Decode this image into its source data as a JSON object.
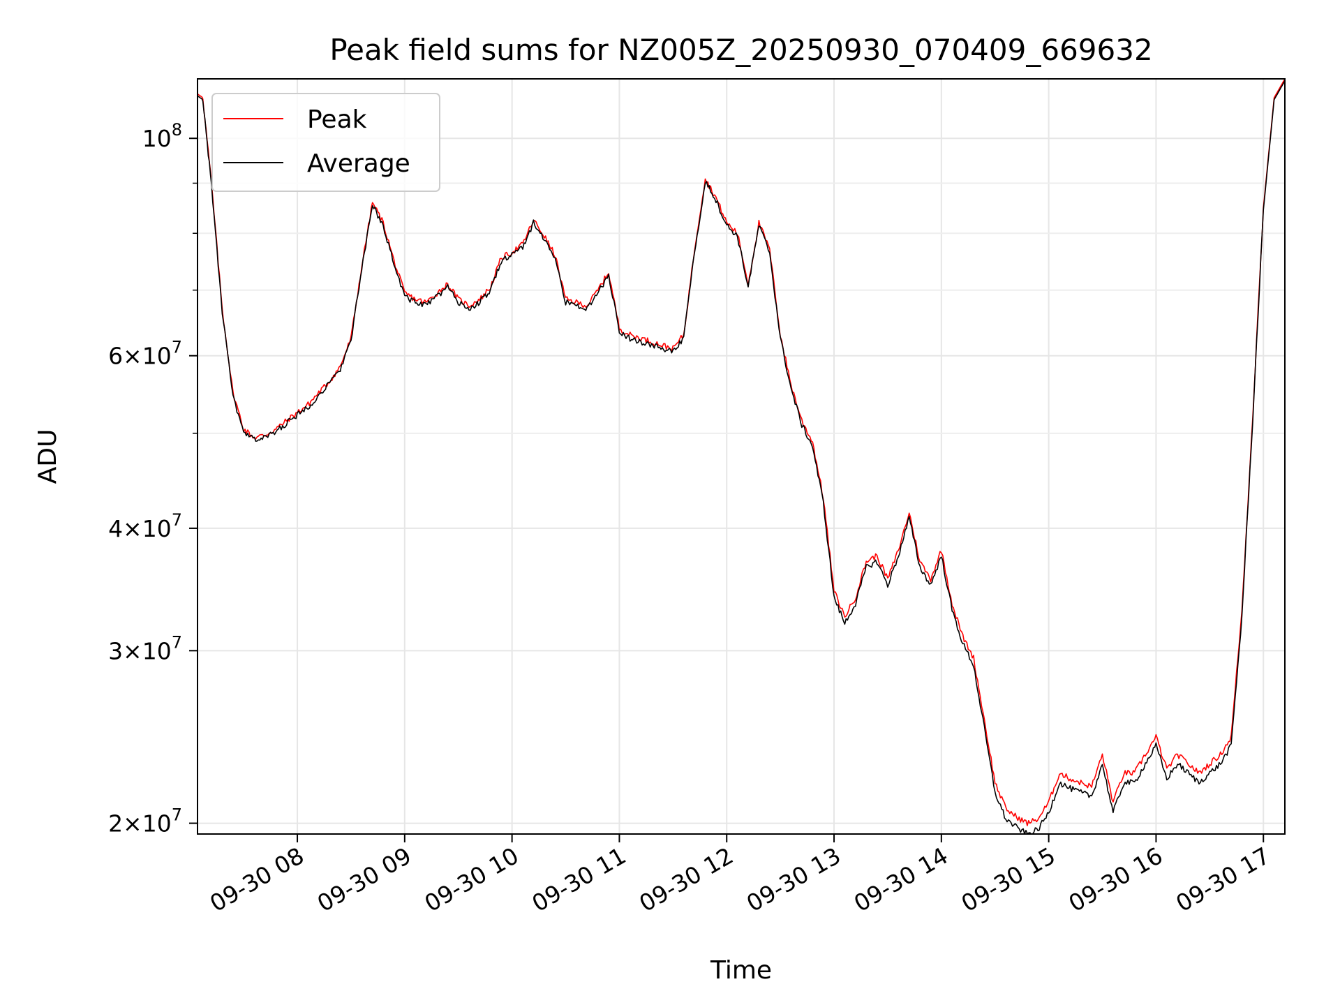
{
  "chart_data": {
    "type": "line",
    "title": "Peak field sums for NZ005Z_20250930_070409_669632",
    "xlabel": "Time",
    "ylabel": "ADU",
    "yscale": "log",
    "ylim": [
      19500000,
      115000000
    ],
    "xlim": [
      7.07,
      17.2
    ],
    "grid": true,
    "legend_position": "top-left",
    "x_ticks": [
      {
        "value": 8,
        "label": "09-30 08"
      },
      {
        "value": 9,
        "label": "09-30 09"
      },
      {
        "value": 10,
        "label": "09-30 10"
      },
      {
        "value": 11,
        "label": "09-30 11"
      },
      {
        "value": 12,
        "label": "09-30 12"
      },
      {
        "value": 13,
        "label": "09-30 13"
      },
      {
        "value": 14,
        "label": "09-30 14"
      },
      {
        "value": 15,
        "label": "09-30 15"
      },
      {
        "value": 16,
        "label": "09-30 16"
      },
      {
        "value": 17,
        "label": "09-30 17"
      }
    ],
    "y_ticks_major": [
      {
        "value": 100000000,
        "base": "10",
        "exp": "8",
        "mant": ""
      },
      {
        "value": 60000000,
        "mant": "6",
        "base": "10",
        "exp": "7"
      },
      {
        "value": 40000000,
        "mant": "4",
        "base": "10",
        "exp": "7"
      },
      {
        "value": 30000000,
        "mant": "3",
        "base": "10",
        "exp": "7"
      },
      {
        "value": 20000000,
        "mant": "2",
        "base": "10",
        "exp": "7"
      }
    ],
    "y_ticks_minor": [
      50000000,
      70000000,
      80000000,
      90000000
    ],
    "x_hours": [
      7.07,
      7.12,
      7.2,
      7.3,
      7.4,
      7.5,
      7.6,
      7.7,
      7.8,
      7.9,
      8.0,
      8.1,
      8.2,
      8.3,
      8.4,
      8.5,
      8.6,
      8.7,
      8.8,
      8.9,
      9.0,
      9.1,
      9.2,
      9.3,
      9.4,
      9.5,
      9.6,
      9.7,
      9.8,
      9.9,
      10.0,
      10.1,
      10.2,
      10.3,
      10.4,
      10.5,
      10.6,
      10.7,
      10.8,
      10.9,
      11.0,
      11.1,
      11.2,
      11.3,
      11.4,
      11.5,
      11.6,
      11.7,
      11.8,
      11.9,
      12.0,
      12.1,
      12.2,
      12.3,
      12.4,
      12.5,
      12.6,
      12.7,
      12.8,
      12.9,
      13.0,
      13.1,
      13.2,
      13.3,
      13.4,
      13.5,
      13.6,
      13.7,
      13.8,
      13.9,
      14.0,
      14.1,
      14.2,
      14.3,
      14.4,
      14.5,
      14.6,
      14.7,
      14.8,
      14.9,
      15.0,
      15.1,
      15.2,
      15.3,
      15.4,
      15.5,
      15.6,
      15.7,
      15.8,
      15.9,
      16.0,
      16.1,
      16.2,
      16.3,
      16.4,
      16.5,
      16.6,
      16.7,
      16.8,
      16.9,
      17.0,
      17.1,
      17.2
    ],
    "series": [
      {
        "name": "Peak",
        "color": "#ff0000",
        "values": [
          111000000,
          110000000,
          90000000,
          67000000,
          55000000,
          50500000,
          49500000,
          49800000,
          50500000,
          51500000,
          52500000,
          53500000,
          55000000,
          56500000,
          58500000,
          62500000,
          74000000,
          86000000,
          82000000,
          75000000,
          69500000,
          68500000,
          68000000,
          69500000,
          71000000,
          68500000,
          67500000,
          68500000,
          70500000,
          75500000,
          76500000,
          78000000,
          82500000,
          79500000,
          76000000,
          68500000,
          68000000,
          67500000,
          70000000,
          73000000,
          64000000,
          63000000,
          62500000,
          62000000,
          61500000,
          61000000,
          63000000,
          77000000,
          91000000,
          87000000,
          82000000,
          80000000,
          71000000,
          82000000,
          77000000,
          63000000,
          56000000,
          51500000,
          49000000,
          43000000,
          34500000,
          32500000,
          34000000,
          37000000,
          37500000,
          35500000,
          38000000,
          41500000,
          37000000,
          35500000,
          38000000,
          33500000,
          31000000,
          29500000,
          25500000,
          22000000,
          20700000,
          20300000,
          20000000,
          20200000,
          21000000,
          22500000,
          22200000,
          22000000,
          21800000,
          23500000,
          21000000,
          22500000,
          22500000,
          23500000,
          24500000,
          22700000,
          23500000,
          23000000,
          22500000,
          23000000,
          23500000,
          24500000,
          33000000,
          52000000,
          85000000,
          110000000,
          115000000
        ]
      },
      {
        "name": "Average",
        "color": "#000000",
        "values": [
          110500000,
          109500000,
          89500000,
          66500000,
          54500000,
          50000000,
          49300000,
          49500000,
          50200000,
          51200000,
          52200000,
          53200000,
          54700000,
          56200000,
          58200000,
          62200000,
          73500000,
          85500000,
          81500000,
          74500000,
          69000000,
          68000000,
          67500000,
          69000000,
          70500000,
          68000000,
          67000000,
          68000000,
          70000000,
          75000000,
          76000000,
          77500000,
          82000000,
          79000000,
          75500000,
          68000000,
          67500000,
          67000000,
          69500000,
          72500000,
          63500000,
          62500000,
          62000000,
          61500000,
          61000000,
          60500000,
          62500000,
          76500000,
          90500000,
          86500000,
          81500000,
          79500000,
          70500000,
          81500000,
          76500000,
          62500000,
          55500000,
          51000000,
          48500000,
          42500000,
          34000000,
          32000000,
          33500000,
          36500000,
          37000000,
          35000000,
          37500000,
          41000000,
          36500000,
          35000000,
          37500000,
          33000000,
          30500000,
          29000000,
          25000000,
          21500000,
          20200000,
          19800000,
          19500000,
          19700000,
          20500000,
          22000000,
          21700000,
          21500000,
          21300000,
          23000000,
          20500000,
          22000000,
          22000000,
          23000000,
          24000000,
          22200000,
          23000000,
          22500000,
          22000000,
          22500000,
          23000000,
          24000000,
          32500000,
          51500000,
          84500000,
          109500000,
          114500000
        ]
      }
    ]
  }
}
